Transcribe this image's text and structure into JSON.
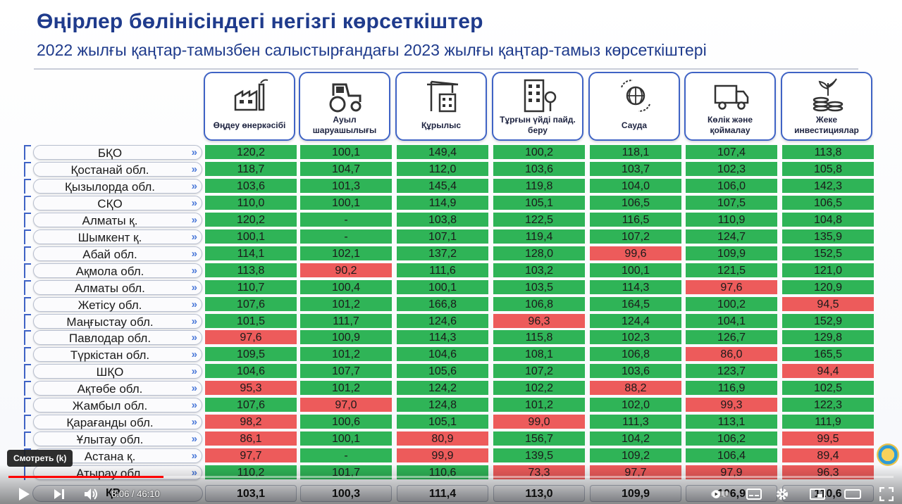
{
  "title": "Өңірлер бөлінісіндегі негізгі көрсеткіштер",
  "subtitle": "2022 жылғы қаңтар-тамызбен салыстырғандағы 2023 жылғы қаңтар-тамыз көрсеткіштері",
  "columns": [
    {
      "label": "Өңдеу өнеркәсібі",
      "icon": "factory-icon"
    },
    {
      "label": "Ауыл шаруашылығы",
      "icon": "tractor-icon"
    },
    {
      "label": "Құрылыс",
      "icon": "construction-crane-icon"
    },
    {
      "label": "Тұрғын үйді пайд. беру",
      "icon": "apartment-building-icon"
    },
    {
      "label": "Сауда",
      "icon": "globe-trade-icon"
    },
    {
      "label": "Көлік және қоймалау",
      "icon": "truck-icon"
    },
    {
      "label": "Жеке инвестициялар",
      "icon": "coins-plant-icon"
    }
  ],
  "rows": [
    {
      "region": "БҚО",
      "values": [
        "120,2",
        "100,1",
        "149,4",
        "100,2",
        "118,1",
        "107,4",
        "113,8"
      ]
    },
    {
      "region": "Қостанай обл.",
      "values": [
        "118,7",
        "104,7",
        "112,0",
        "103,6",
        "103,7",
        "102,3",
        "105,8"
      ]
    },
    {
      "region": "Қызылорда обл.",
      "values": [
        "103,6",
        "101,3",
        "145,4",
        "119,8",
        "104,0",
        "106,0",
        "142,3"
      ]
    },
    {
      "region": "СҚО",
      "values": [
        "110,0",
        "100,1",
        "114,9",
        "105,1",
        "106,5",
        "107,5",
        "106,5"
      ]
    },
    {
      "region": "Алматы қ.",
      "values": [
        "120,2",
        "-",
        "103,8",
        "122,5",
        "116,5",
        "110,9",
        "104,8"
      ]
    },
    {
      "region": "Шымкент қ.",
      "values": [
        "100,1",
        "-",
        "107,1",
        "119,4",
        "107,2",
        "124,7",
        "135,9"
      ]
    },
    {
      "region": "Абай обл.",
      "values": [
        "114,1",
        "102,1",
        "137,2",
        "128,0",
        "99,6",
        "109,9",
        "152,5"
      ]
    },
    {
      "region": "Ақмола обл.",
      "values": [
        "113,8",
        "90,2",
        "111,6",
        "103,2",
        "100,1",
        "121,5",
        "121,0"
      ]
    },
    {
      "region": "Алматы обл.",
      "values": [
        "110,7",
        "100,4",
        "100,1",
        "103,5",
        "114,3",
        "97,6",
        "120,9"
      ]
    },
    {
      "region": "Жетісу обл.",
      "values": [
        "107,6",
        "101,2",
        "166,8",
        "106,8",
        "164,5",
        "100,2",
        "94,5"
      ]
    },
    {
      "region": "Маңғыстау обл.",
      "values": [
        "101,5",
        "111,7",
        "124,6",
        "96,3",
        "124,4",
        "104,1",
        "152,9"
      ]
    },
    {
      "region": "Павлодар обл.",
      "values": [
        "97,6",
        "100,9",
        "114,3",
        "115,8",
        "102,3",
        "126,7",
        "129,8"
      ]
    },
    {
      "region": "Түркістан обл.",
      "values": [
        "109,5",
        "101,2",
        "104,6",
        "108,1",
        "106,8",
        "86,0",
        "165,5"
      ]
    },
    {
      "region": "ШҚО",
      "values": [
        "104,6",
        "107,7",
        "105,6",
        "107,2",
        "103,6",
        "123,7",
        "94,4"
      ]
    },
    {
      "region": "Ақтөбе обл.",
      "values": [
        "95,3",
        "101,2",
        "124,2",
        "102,2",
        "88,2",
        "116,9",
        "102,5"
      ]
    },
    {
      "region": "Жамбыл обл.",
      "values": [
        "107,6",
        "97,0",
        "124,8",
        "101,2",
        "102,0",
        "99,3",
        "122,3"
      ]
    },
    {
      "region": "Қарағанды обл.",
      "values": [
        "98,2",
        "100,6",
        "105,1",
        "99,0",
        "111,3",
        "113,1",
        "111,9"
      ]
    },
    {
      "region": "Ұлытау обл.",
      "values": [
        "86,1",
        "100,1",
        "80,9",
        "156,7",
        "104,2",
        "106,2",
        "99,5"
      ]
    },
    {
      "region": "Астана қ.",
      "values": [
        "97,7",
        "-",
        "99,9",
        "139,5",
        "109,2",
        "106,4",
        "89,4"
      ]
    },
    {
      "region": "Атырау обл.",
      "values": [
        "110,2",
        "101,7",
        "110,6",
        "73,3",
        "97,7",
        "97,9",
        "96,3"
      ]
    }
  ],
  "red_cells": {
    "6": [
      4
    ],
    "7": [
      1
    ],
    "8": [
      5
    ],
    "9": [
      6
    ],
    "10": [
      3
    ],
    "11": [
      0
    ],
    "12": [
      5
    ],
    "13": [
      6
    ],
    "14": [
      0,
      4
    ],
    "15": [
      1,
      5
    ],
    "16": [
      0,
      3
    ],
    "17": [
      0,
      2,
      6
    ],
    "18": [
      0,
      2,
      6
    ],
    "19": [
      3,
      4,
      5,
      6
    ]
  },
  "totals": {
    "label": "ҚР",
    "values": [
      "103,1",
      "100,3",
      "111,4",
      "113,0",
      "109,9",
      "106,9",
      "110,6"
    ]
  },
  "colors": {
    "above_100": "#2fb457",
    "below_100": "#ed5b5b",
    "title": "#1f3b8c"
  },
  "player": {
    "tooltip": "Смотреть (k)",
    "time": "8:06 / 46:10",
    "progress_fraction": 0.175
  }
}
